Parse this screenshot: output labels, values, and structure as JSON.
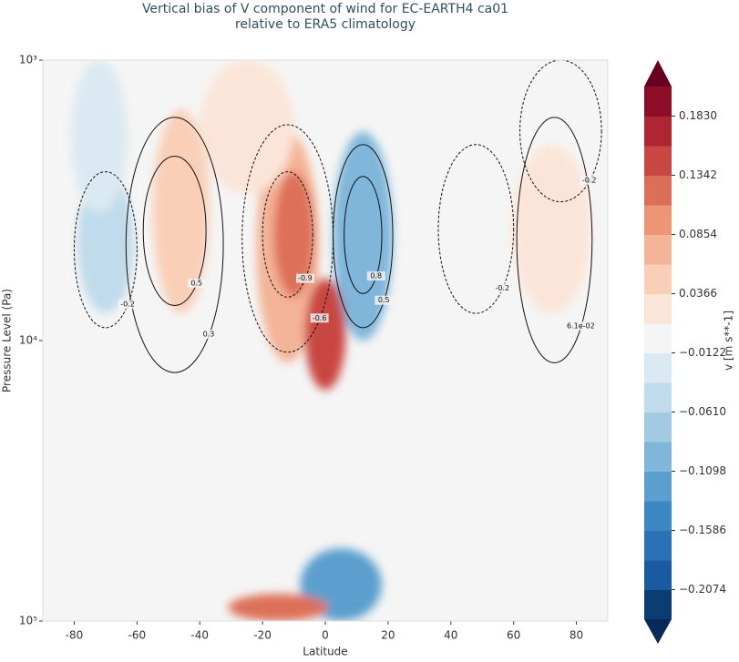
{
  "chart_data": {
    "type": "contour",
    "title": "Vertical bias of V component of wind for EC-EARTH4 ca01",
    "subtitle": "relative to ERA5 climatology",
    "xlabel": "Latitude",
    "ylabel": "Pressure Level (Pa)",
    "xlim": [
      -90,
      90
    ],
    "xticks": [
      -80,
      -60,
      -40,
      -20,
      0,
      20,
      40,
      60,
      80
    ],
    "ylim": [
      100000,
      1000
    ],
    "yscale": "log",
    "yticks": [
      {
        "value": 1000,
        "label": "10³"
      },
      {
        "value": 10000,
        "label": "10⁴"
      },
      {
        "value": 100000,
        "label": "10⁵"
      }
    ],
    "colorbar": {
      "label": "v [m s**-1]",
      "clim": [
        -0.2318,
        0.2074
      ],
      "ticks": [
        {
          "value": 0.183,
          "label": "0.1830"
        },
        {
          "value": 0.1342,
          "label": "0.1342"
        },
        {
          "value": 0.0854,
          "label": "0.0854"
        },
        {
          "value": 0.0366,
          "label": "0.0366"
        },
        {
          "value": -0.0122,
          "label": "−0.0122"
        },
        {
          "value": -0.061,
          "label": "−0.0610"
        },
        {
          "value": -0.1098,
          "label": "−0.1098"
        },
        {
          "value": -0.1586,
          "label": "−0.1586"
        },
        {
          "value": -0.2074,
          "label": "−0.2074"
        }
      ],
      "colors": [
        "#0b3d72",
        "#1a5aa0",
        "#2a72b5",
        "#3d88c2",
        "#5b9fce",
        "#7fb6da",
        "#a2cbe3",
        "#c0dbeb",
        "#dae9f2",
        "#f5f5f5",
        "#fbe5d8",
        "#f9cfb7",
        "#f4b497",
        "#ec9676",
        "#dd6f58",
        "#c94742",
        "#af2532",
        "#8c0d25"
      ],
      "under_color": "#08295a",
      "over_color": "#67001f"
    },
    "field": [
      {
        "lat": 12,
        "p": 4000,
        "lat_span": [
          5,
          19
        ],
        "p_span": [
          2200,
          7500
        ],
        "value": -0.19
      },
      {
        "lat": 12,
        "p": 4000,
        "lat_span": [
          3,
          22
        ],
        "p_span": [
          1800,
          10000
        ],
        "value": -0.09
      },
      {
        "lat": -70,
        "p": 4000,
        "lat_span": [
          -79,
          -61
        ],
        "p_span": [
          2500,
          8000
        ],
        "value": -0.05
      },
      {
        "lat": 5,
        "p": 75000,
        "lat_span": [
          -8,
          18
        ],
        "p_span": [
          55000,
          100000
        ],
        "value": -0.12
      },
      {
        "lat": -72,
        "p": 1800,
        "lat_span": [
          -80,
          -62
        ],
        "p_span": [
          1000,
          3500
        ],
        "value": -0.03
      },
      {
        "lat": -12,
        "p": 4500,
        "lat_span": [
          -22,
          -2
        ],
        "p_span": [
          1800,
          12000
        ],
        "value": 0.07
      },
      {
        "lat": -10,
        "p": 4000,
        "lat_span": [
          -17,
          -4
        ],
        "p_span": [
          2500,
          7000
        ],
        "value": 0.12
      },
      {
        "lat": 0,
        "p": 9000,
        "lat_span": [
          -6,
          7
        ],
        "p_span": [
          6000,
          15000
        ],
        "value": 0.14
      },
      {
        "lat": -46,
        "p": 3800,
        "lat_span": [
          -56,
          -38
        ],
        "p_span": [
          1500,
          8000
        ],
        "value": 0.05
      },
      {
        "lat": -15,
        "p": 92000,
        "lat_span": [
          -32,
          0
        ],
        "p_span": [
          80000,
          100000
        ],
        "value": 0.11
      },
      {
        "lat": -25,
        "p": 1500,
        "lat_span": [
          -40,
          -10
        ],
        "p_span": [
          1000,
          3000
        ],
        "value": 0.03
      },
      {
        "lat": 72,
        "p": 4000,
        "lat_span": [
          60,
          85
        ],
        "p_span": [
          2000,
          8000
        ],
        "value": 0.025
      }
    ],
    "contours": [
      {
        "label": 0.5,
        "lat": -48,
        "p": 4000,
        "lat_span": [
          -58,
          -38
        ],
        "p_span": [
          2200,
          7500
        ]
      },
      {
        "label": 0.3,
        "lat": -48,
        "p": 4500,
        "lat_span": [
          -64,
          -33
        ],
        "p_span": [
          1600,
          13000
        ]
      },
      {
        "label": -0.9,
        "lat": -12,
        "p": 4000,
        "lat_span": [
          -20,
          -4
        ],
        "p_span": [
          2500,
          7000
        ]
      },
      {
        "label": -0.6,
        "lat": -12,
        "p": 4200,
        "lat_span": [
          -27,
          2
        ],
        "p_span": [
          1700,
          11000
        ]
      },
      {
        "label": 0.8,
        "lat": 12,
        "p": 4000,
        "lat_span": [
          6,
          18
        ],
        "p_span": [
          2600,
          6800
        ]
      },
      {
        "label": 0.5,
        "lat": 12,
        "p": 4200,
        "lat_span": [
          3,
          22
        ],
        "p_span": [
          2000,
          9000
        ]
      },
      {
        "label": -0.2,
        "lat": -70,
        "p": 4200,
        "lat_span": [
          -80,
          -60
        ],
        "p_span": [
          2500,
          9000
        ]
      },
      {
        "label": -0.2,
        "lat": 48,
        "p": 4000,
        "lat_span": [
          36,
          60
        ],
        "p_span": [
          2000,
          8000
        ]
      },
      {
        "label": {
          "value": 0.061,
          "label": "6.1e-02"
        },
        "lat": 73,
        "p": 4000,
        "lat_span": [
          62,
          86
        ],
        "p_span": [
          1600,
          12000
        ]
      },
      {
        "label": -0.2,
        "lat": 75,
        "p": 1800,
        "lat_span": [
          62,
          88
        ],
        "p_span": [
          1000,
          3200
        ]
      }
    ]
  }
}
